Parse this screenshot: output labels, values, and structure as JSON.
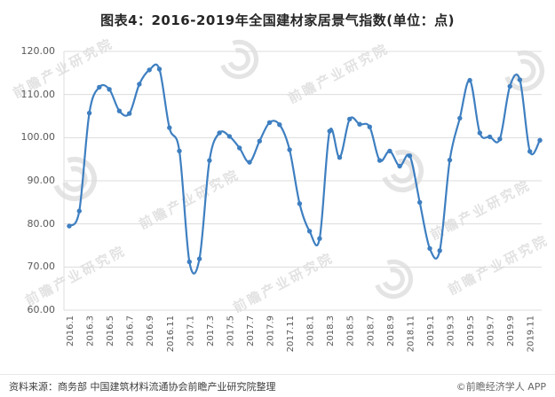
{
  "title": "图表4：2016-2019年全国建材家居景气指数(单位：点)",
  "watermark": {
    "text": "前瞻产业研究院",
    "logo_icon": "qianzhan-swirl-logo-icon"
  },
  "footer": {
    "source": "资料来源：商务部 中国建筑材料流通协会前瞻产业研究院整理",
    "copyright": "©前瞻经济学人 APP"
  },
  "chart_data": {
    "type": "line",
    "title": "图表4：2016-2019年全国建材家居景气指数(单位：点)",
    "series_name": "全国建材家居景气指数",
    "unit": "点",
    "x": [
      "2016.1",
      "2016.2",
      "2016.3",
      "2016.4",
      "2016.5",
      "2016.6",
      "2016.7",
      "2016.8",
      "2016.9",
      "2016.10",
      "2016.11",
      "2016.12",
      "2017.1",
      "2017.2",
      "2017.3",
      "2017.4",
      "2017.5",
      "2017.6",
      "2017.7",
      "2017.8",
      "2017.9",
      "2017.10",
      "2017.11",
      "2017.12",
      "2018.1",
      "2018.2",
      "2018.3",
      "2018.4",
      "2018.5",
      "2018.6",
      "2018.7",
      "2018.8",
      "2018.9",
      "2018.10",
      "2018.11",
      "2018.12",
      "2019.1",
      "2019.2",
      "2019.3",
      "2019.4",
      "2019.5",
      "2019.6",
      "2019.7",
      "2019.8",
      "2019.9",
      "2019.10",
      "2019.11",
      "2019.12"
    ],
    "values": [
      79.5,
      83.0,
      105.7,
      111.7,
      111.2,
      106.2,
      105.6,
      112.4,
      115.7,
      115.9,
      102.3,
      96.9,
      71.2,
      71.9,
      94.7,
      101.1,
      100.3,
      97.6,
      94.3,
      99.2,
      103.5,
      103.0,
      97.2,
      84.7,
      78.3,
      76.6,
      101.5,
      95.4,
      104.3,
      103.1,
      102.5,
      94.7,
      96.9,
      93.4,
      95.8,
      85.0,
      74.3,
      73.8,
      94.8,
      104.5,
      113.3,
      101.1,
      100.2,
      99.7,
      111.9,
      113.4,
      96.8,
      99.4
    ],
    "ylim": [
      60,
      120
    ],
    "yticks": [
      60,
      70,
      80,
      90,
      100,
      110,
      120
    ],
    "ytick_step": 10,
    "y_tick_decimals": 2,
    "xtick_every": 2,
    "x_label_rotation": -90,
    "grid": true,
    "legend": "none",
    "line_color": "#3e7fc1",
    "grid_color": "#dcdcdc",
    "marker": "circle"
  }
}
